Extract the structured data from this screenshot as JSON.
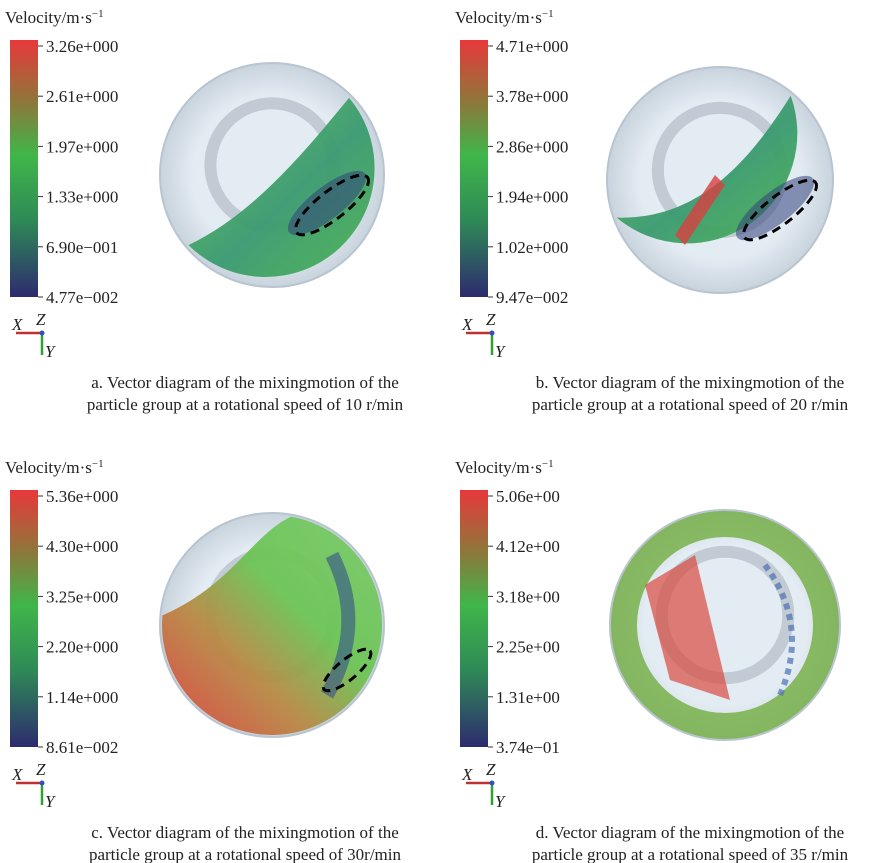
{
  "panels": [
    {
      "colorbar": {
        "title": "Velocity/m·s",
        "title_sup": "−1",
        "labels": [
          "3.26e+000",
          "2.61e+000",
          "1.97e+000",
          "1.33e+000",
          "6.90e−001",
          "4.77e−002"
        ]
      },
      "axes": {
        "x": "X",
        "z": "Z",
        "y": "Y"
      },
      "caption": [
        "a. Vector diagram of the mixingmotion of the",
        "particle group at a rotational speed of 10 r/min"
      ]
    },
    {
      "colorbar": {
        "title": "Velocity/m·s",
        "title_sup": "−1",
        "labels": [
          "4.71e+000",
          "3.78e+000",
          "2.86e+000",
          "1.94e+000",
          "1.02e+000",
          "9.47e−002"
        ]
      },
      "axes": {
        "x": "X",
        "z": "Z",
        "y": "Y"
      },
      "caption": [
        "b. Vector diagram of the mixingmotion of the",
        "particle group at a rotational speed of 20 r/min"
      ]
    },
    {
      "colorbar": {
        "title": "Velocity/m·s",
        "title_sup": "−1",
        "labels": [
          "5.36e+000",
          "4.30e+000",
          "3.25e+000",
          "2.20e+000",
          "1.14e+000",
          "8.61e−002"
        ]
      },
      "axes": {
        "x": "X",
        "z": "Z",
        "y": "Y"
      },
      "caption": [
        "c. Vector diagram of the mixingmotion of the",
        "particle group at a rotational speed of 30r/min"
      ]
    },
    {
      "colorbar": {
        "title": "Velocity/m·s",
        "title_sup": "−1",
        "labels": [
          "5.06e+00",
          "4.12e+00",
          "3.18e+00",
          "2.25e+00",
          "1.31e+00",
          "3.74e−01"
        ]
      },
      "axes": {
        "x": "X",
        "z": "Z",
        "y": "Y"
      },
      "caption": [
        "d. Vector diagram of the mixingmotion of the",
        "particle group at a rotational speed of 35 r/min"
      ]
    }
  ]
}
